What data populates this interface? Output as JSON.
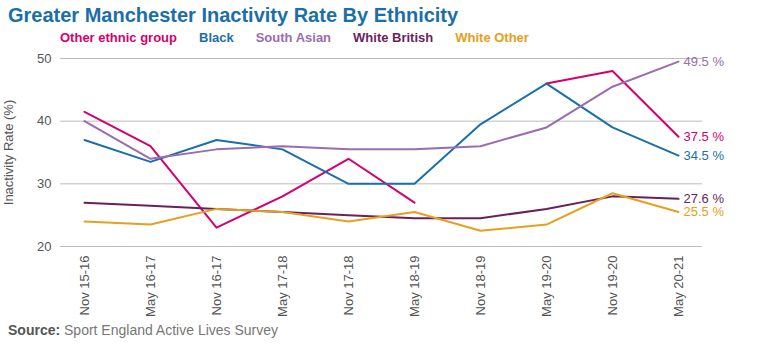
{
  "chart_data": {
    "type": "line",
    "title": "Greater Manchester Inactivity Rate By Ethnicity",
    "y_label": "Inactivity Rate (%)",
    "source_label": "Source:",
    "source": "Sport England Active Lives Survey",
    "categories": [
      "Nov 15-16",
      "May 16-17",
      "Nov 16-17",
      "May 17-18",
      "Nov 17-18",
      "May 18-19",
      "Nov 18-19",
      "May 19-20",
      "Nov 19-20",
      "May 20-21"
    ],
    "series": [
      {
        "name": "Other ethnic group",
        "color": "#d4006e",
        "values": [
          41.5,
          36,
          23,
          28,
          34,
          27,
          null,
          46,
          48,
          37.5
        ],
        "value_labels": [
          null,
          null,
          null,
          null,
          null,
          null,
          null,
          null,
          null,
          "37.5 %"
        ]
      },
      {
        "name": "Black",
        "color": "#1b6fa8",
        "values": [
          37,
          33.5,
          37,
          35.5,
          30,
          30,
          39.5,
          46,
          39,
          34.5
        ],
        "value_labels": [
          null,
          null,
          null,
          null,
          null,
          null,
          null,
          null,
          null,
          "34.5 %"
        ]
      },
      {
        "name": "South Asian",
        "color": "#9a6cb0",
        "values": [
          40,
          34,
          35.5,
          36,
          35.5,
          35.5,
          36,
          39,
          45.5,
          49.5
        ],
        "value_labels": [
          null,
          null,
          null,
          null,
          null,
          null,
          null,
          null,
          null,
          "49.5 %"
        ]
      },
      {
        "name": "White British",
        "color": "#6a1f5f",
        "values": [
          27,
          26.5,
          26,
          25.5,
          25,
          24.5,
          24.5,
          26,
          28,
          27.6
        ],
        "value_labels": [
          null,
          null,
          null,
          null,
          null,
          null,
          null,
          null,
          null,
          "27.6 %"
        ]
      },
      {
        "name": "White Other",
        "color": "#e5a020",
        "values": [
          24,
          23.5,
          26,
          25.5,
          24,
          25.5,
          22.5,
          23.5,
          28.5,
          25.5
        ],
        "value_labels": [
          null,
          null,
          null,
          null,
          null,
          null,
          null,
          null,
          null,
          "25.5 %"
        ]
      }
    ],
    "ylim": [
      20,
      50
    ],
    "yticks": [
      20,
      30,
      40,
      50
    ],
    "grid": true,
    "data_labels": true
  }
}
